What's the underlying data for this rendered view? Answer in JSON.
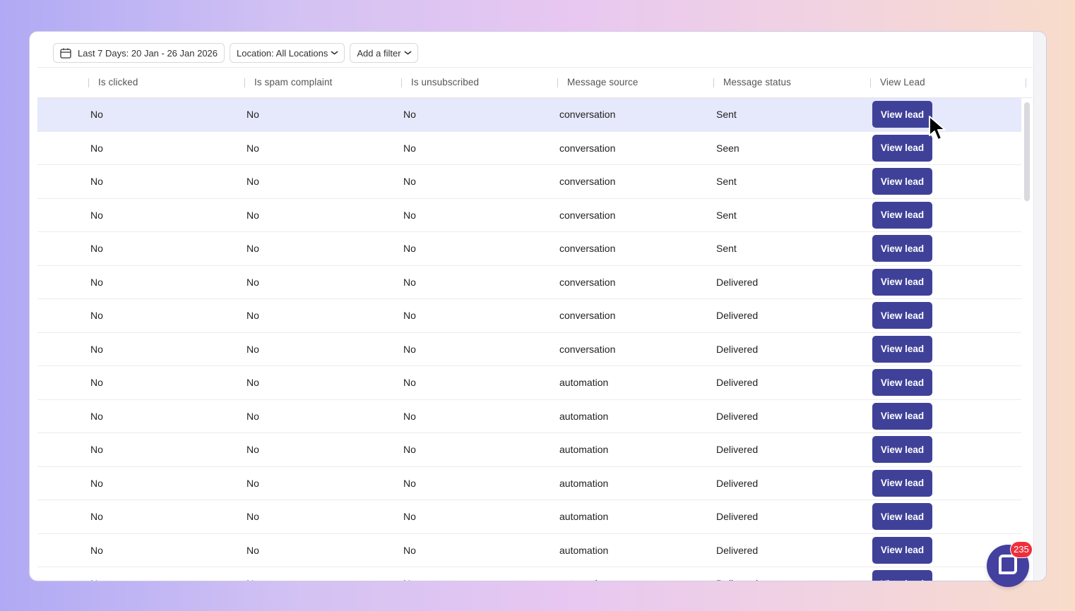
{
  "filters": {
    "date_range": "Last 7 Days: 20 Jan - 26 Jan 2026",
    "location": "Location: All Locations",
    "add_filter": "Add a filter"
  },
  "table": {
    "columns": [
      "Is clicked",
      "Is spam complaint",
      "Is unsubscribed",
      "Message source",
      "Message status",
      "View Lead"
    ],
    "button_label": "View lead",
    "rows": [
      {
        "clicked": "No",
        "spam": "No",
        "unsub": "No",
        "source": "conversation",
        "status": "Sent"
      },
      {
        "clicked": "No",
        "spam": "No",
        "unsub": "No",
        "source": "conversation",
        "status": "Seen"
      },
      {
        "clicked": "No",
        "spam": "No",
        "unsub": "No",
        "source": "conversation",
        "status": "Sent"
      },
      {
        "clicked": "No",
        "spam": "No",
        "unsub": "No",
        "source": "conversation",
        "status": "Sent"
      },
      {
        "clicked": "No",
        "spam": "No",
        "unsub": "No",
        "source": "conversation",
        "status": "Sent"
      },
      {
        "clicked": "No",
        "spam": "No",
        "unsub": "No",
        "source": "conversation",
        "status": "Delivered"
      },
      {
        "clicked": "No",
        "spam": "No",
        "unsub": "No",
        "source": "conversation",
        "status": "Delivered"
      },
      {
        "clicked": "No",
        "spam": "No",
        "unsub": "No",
        "source": "conversation",
        "status": "Delivered"
      },
      {
        "clicked": "No",
        "spam": "No",
        "unsub": "No",
        "source": "automation",
        "status": "Delivered"
      },
      {
        "clicked": "No",
        "spam": "No",
        "unsub": "No",
        "source": "automation",
        "status": "Delivered"
      },
      {
        "clicked": "No",
        "spam": "No",
        "unsub": "No",
        "source": "automation",
        "status": "Delivered"
      },
      {
        "clicked": "No",
        "spam": "No",
        "unsub": "No",
        "source": "automation",
        "status": "Delivered"
      },
      {
        "clicked": "No",
        "spam": "No",
        "unsub": "No",
        "source": "automation",
        "status": "Delivered"
      },
      {
        "clicked": "No",
        "spam": "No",
        "unsub": "No",
        "source": "automation",
        "status": "Delivered"
      },
      {
        "clicked": "No",
        "spam": "No",
        "unsub": "No",
        "source": "automation",
        "status": "Delivered"
      }
    ]
  },
  "chat": {
    "badge_count": "235",
    "icon": "chat-icon"
  },
  "colors": {
    "button": "#3f4199",
    "row_hover": "#e6e8fc",
    "badge": "#ee2f3a"
  }
}
